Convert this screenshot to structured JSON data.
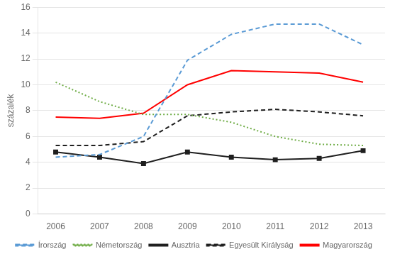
{
  "chart_data": {
    "type": "line",
    "y_label": "százalék",
    "x": [
      2006,
      2007,
      2008,
      2009,
      2010,
      2011,
      2012,
      2013
    ],
    "series": [
      {
        "name": "Írország",
        "color": "#5B9BD5",
        "line_style": "dashed",
        "values": [
          4.4,
          4.6,
          6.0,
          11.9,
          13.9,
          14.7,
          14.7,
          13.1
        ]
      },
      {
        "name": "Németország",
        "color": "#70AD47",
        "line_style": "dotted",
        "values": [
          10.2,
          8.7,
          7.7,
          7.7,
          7.1,
          6.0,
          5.4,
          5.3
        ]
      },
      {
        "name": "Ausztria",
        "color": "#1F1F1F",
        "line_style": "solid",
        "marker": "square",
        "values": [
          4.8,
          4.4,
          3.9,
          4.8,
          4.4,
          4.2,
          4.3,
          4.9
        ]
      },
      {
        "name": "Egyesült Királyság",
        "color": "#1F1F1F",
        "line_style": "dashed",
        "values": [
          5.3,
          5.3,
          5.6,
          7.6,
          7.9,
          8.1,
          7.9,
          7.6
        ]
      },
      {
        "name": "Magyarország",
        "color": "#FF0000",
        "line_style": "solid",
        "values": [
          7.5,
          7.4,
          7.8,
          10.0,
          11.1,
          11.0,
          10.9,
          10.2
        ]
      }
    ],
    "xlim": [
      2005.6,
      2013.5
    ],
    "xticks": [
      2006,
      2007,
      2008,
      2009,
      2010,
      2011,
      2012,
      2013
    ],
    "ylim": [
      0,
      16
    ],
    "yticks": [
      0,
      2,
      4,
      6,
      8,
      10,
      12,
      14,
      16
    ],
    "grid": true,
    "legend": "bottom"
  }
}
